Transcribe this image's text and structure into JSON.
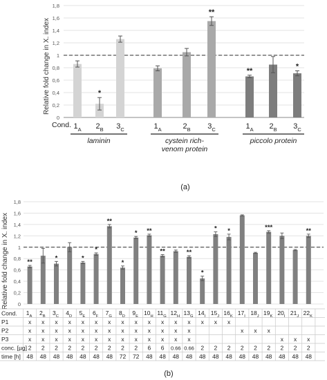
{
  "panel_a": {
    "label": "(a)",
    "cond_label": "Cond.",
    "group_labels": [
      {
        "text": "laminin",
        "lines": [
          "laminin"
        ]
      },
      {
        "text": "cystein rich-venom protein",
        "lines": [
          "cystein rich-",
          "venom protein"
        ]
      },
      {
        "text": "piccolo protein",
        "lines": [
          "piccolo protein"
        ]
      }
    ],
    "colors": {
      "laminin": "#d4d4d4",
      "cystein": "#a9a9a9",
      "piccolo": "#7d7d7d"
    }
  },
  "panel_b": {
    "label": "(b)",
    "table": {
      "rows": [
        {
          "label": "P1",
          "cells": [
            "x",
            "x",
            "x",
            "x",
            "x",
            "x",
            "x",
            "x",
            "x",
            "x",
            "x",
            "x",
            "x",
            "x",
            "x",
            "x",
            "",
            "",
            "",
            "",
            "",
            ""
          ]
        },
        {
          "label": "P2",
          "cells": [
            "x",
            "x",
            "x",
            "x",
            "x",
            "x",
            "x",
            "x",
            "x",
            "x",
            "x",
            "x",
            "x",
            "",
            "",
            "",
            "x",
            "x",
            "x",
            "",
            "",
            ""
          ]
        },
        {
          "label": "P3",
          "cells": [
            "x",
            "x",
            "x",
            "x",
            "x",
            "x",
            "x",
            "x",
            "x",
            "x",
            "x",
            "x",
            "x",
            "",
            "",
            "",
            "",
            "",
            "",
            "x",
            "x",
            "x"
          ]
        },
        {
          "label": "conc. [µg]",
          "cells": [
            "2",
            "2",
            "2",
            "2",
            "2",
            "2",
            "2",
            "2",
            "2",
            "6",
            "6",
            "0.66",
            "0.66",
            "2",
            "2",
            "2",
            "2",
            "2",
            "2",
            "2",
            "2",
            "2"
          ]
        },
        {
          "label": "time [h]",
          "cells": [
            "48",
            "48",
            "48",
            "48",
            "48",
            "48",
            "48",
            "72",
            "72",
            "48",
            "48",
            "48",
            "48",
            "48",
            "48",
            "48",
            "48",
            "48",
            "48",
            "48",
            "48",
            "48"
          ]
        }
      ]
    }
  },
  "chart_data": [
    {
      "type": "bar",
      "panel": "a",
      "ylabel": "Relative fold change in X. index",
      "ylim": [
        0,
        1.8
      ],
      "ytick_step": 0.2,
      "yticks": [
        "0",
        "0,2",
        "0,4",
        "0,6",
        "0,8",
        "1",
        "1,2",
        "1,4",
        "1,6",
        "1,8"
      ],
      "reference_line": 1,
      "grid": true,
      "cond_label": "Cond.",
      "bars": [
        {
          "num": "1",
          "sub": "A",
          "value": 0.86,
          "error": 0.05,
          "sig": "",
          "group": "laminin"
        },
        {
          "num": "2",
          "sub": "B",
          "value": 0.22,
          "error": 0.1,
          "sig": "*",
          "group": "laminin"
        },
        {
          "num": "3",
          "sub": "C",
          "value": 1.26,
          "error": 0.05,
          "sig": "",
          "group": "laminin"
        },
        {
          "num": "1",
          "sub": "A",
          "value": 0.79,
          "error": 0.04,
          "sig": "",
          "group": "cystein"
        },
        {
          "num": "2",
          "sub": "B",
          "value": 1.05,
          "error": 0.06,
          "sig": "",
          "group": "cystein"
        },
        {
          "num": "3",
          "sub": "C",
          "value": 1.55,
          "error": 0.07,
          "sig": "**",
          "group": "cystein"
        },
        {
          "num": "1",
          "sub": "A",
          "value": 0.66,
          "error": 0.02,
          "sig": "**",
          "group": "piccolo"
        },
        {
          "num": "2",
          "sub": "B",
          "value": 0.85,
          "error": 0.13,
          "sig": "",
          "group": "piccolo"
        },
        {
          "num": "3",
          "sub": "C",
          "value": 0.71,
          "error": 0.04,
          "sig": "*",
          "group": "piccolo"
        }
      ]
    },
    {
      "type": "bar",
      "panel": "b",
      "ylabel": "Relative fold change in X. index",
      "ylim": [
        0,
        1.8
      ],
      "ytick_step": 0.2,
      "yticks": [
        "0",
        "0,2",
        "0,4",
        "0,6",
        "0,8",
        "1",
        "1,2",
        "1,4",
        "1,6",
        "1,8"
      ],
      "reference_line": 1,
      "grid": true,
      "bar_color": "#808080",
      "cond_label": "Cond.",
      "bars": [
        {
          "num": "1",
          "sub": "A",
          "value": 0.66,
          "error": 0.02,
          "sig": "**"
        },
        {
          "num": "2",
          "sub": "B",
          "value": 0.85,
          "error": 0.13,
          "sig": ""
        },
        {
          "num": "3",
          "sub": "C",
          "value": 0.71,
          "error": 0.04,
          "sig": "*"
        },
        {
          "num": "4",
          "sub": "D",
          "value": 1.0,
          "error": 0.08,
          "sig": ""
        },
        {
          "num": "5",
          "sub": "E",
          "value": 0.73,
          "error": 0.02,
          "sig": "*"
        },
        {
          "num": "6",
          "sub": "F",
          "value": 0.88,
          "error": 0.02,
          "sig": "*"
        },
        {
          "num": "7",
          "sub": "G",
          "value": 1.37,
          "error": 0.03,
          "sig": "**"
        },
        {
          "num": "8",
          "sub": "D",
          "value": 0.64,
          "error": 0.03,
          "sig": "*"
        },
        {
          "num": "9",
          "sub": "E",
          "value": 1.17,
          "error": 0.02,
          "sig": "*"
        },
        {
          "num": "10",
          "sub": "H",
          "value": 1.21,
          "error": 0.02,
          "sig": "**"
        },
        {
          "num": "11",
          "sub": "G",
          "value": 0.85,
          "error": 0.02,
          "sig": "**"
        },
        {
          "num": "12",
          "sub": "H",
          "value": 0.93,
          "error": 0.02,
          "sig": ""
        },
        {
          "num": "13",
          "sub": "G",
          "value": 0.83,
          "error": 0.02,
          "sig": "**"
        },
        {
          "num": "14",
          "sub": "I",
          "value": 0.45,
          "error": 0.04,
          "sig": "*"
        },
        {
          "num": "15",
          "sub": "J",
          "value": 1.23,
          "error": 0.04,
          "sig": "*"
        },
        {
          "num": "16",
          "sub": "K",
          "value": 1.18,
          "error": 0.05,
          "sig": "*"
        },
        {
          "num": "17",
          "sub": "I",
          "value": 1.56,
          "error": 0.01,
          "sig": ""
        },
        {
          "num": "18",
          "sub": "J",
          "value": 0.9,
          "error": 0.01,
          "sig": ""
        },
        {
          "num": "19",
          "sub": "K",
          "value": 1.27,
          "error": 0.02,
          "sig": "***"
        },
        {
          "num": "20",
          "sub": "I",
          "value": 1.2,
          "error": 0.05,
          "sig": ""
        },
        {
          "num": "21",
          "sub": "J",
          "value": 0.95,
          "error": 0.01,
          "sig": ""
        },
        {
          "num": "22",
          "sub": "K",
          "value": 1.2,
          "error": 0.03,
          "sig": "**"
        }
      ]
    }
  ]
}
